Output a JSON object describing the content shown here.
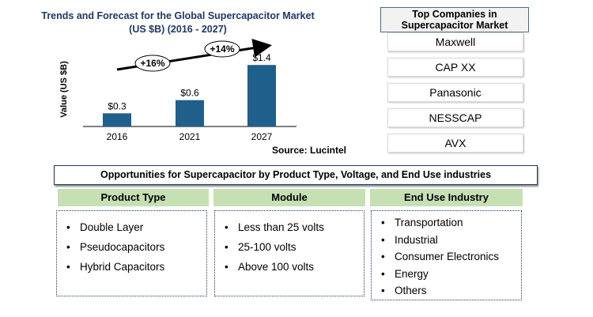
{
  "chart_data": {
    "type": "bar",
    "title": "Trends and Forecast for the Global Supercapacitor Market (US $B) (2016  - 2027)",
    "categories": [
      "2016",
      "2021",
      "2027"
    ],
    "values": [
      0.3,
      0.6,
      1.4
    ],
    "data_labels": [
      "$0.3",
      "$0.6",
      "$1.4"
    ],
    "ylabel": "Value (US $B)",
    "ylim": [
      0,
      1.8
    ],
    "bar_color": "#1f5f8b",
    "annotations": [
      "+16%",
      "+14%"
    ],
    "grid": false,
    "legend": "none"
  },
  "source": "Source: Lucintel",
  "companies": {
    "title": "Top Companies in Supercapacitor Market",
    "items": [
      "Maxwell",
      "CAP XX",
      "Panasonic",
      "NESSCAP",
      "AVX"
    ]
  },
  "opportunities": {
    "title": "Opportunities for Supercapacitor by Product Type,  Voltage,  and End Use industries",
    "columns": [
      {
        "header": "Product Type",
        "items": [
          "Double Layer",
          "Pseudocapacitors",
          "Hybrid Capacitors"
        ]
      },
      {
        "header": "Module",
        "items": [
          "Less than 25 volts",
          "25-100 volts",
          "Above 100 volts"
        ]
      },
      {
        "header": "End Use Industry",
        "items": [
          "Transportation",
          "Industrial",
          "Consumer Electronics",
          "Energy",
          "Others"
        ]
      }
    ]
  },
  "colors": {
    "header_green": "#c6e0b4",
    "title_navy": "#1f3864",
    "bar": "#1f5f8b"
  }
}
